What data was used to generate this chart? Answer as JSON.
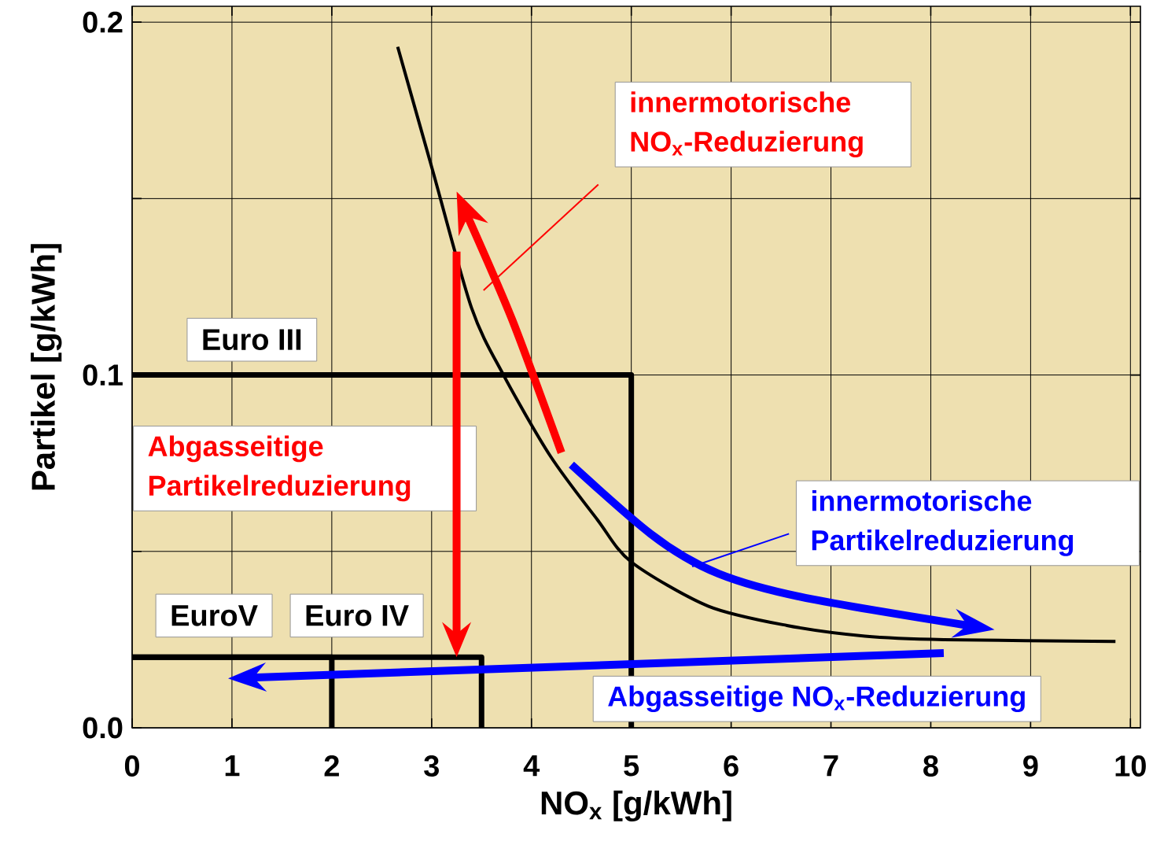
{
  "chart_data": {
    "type": "line",
    "xlabel": "NO$_{x}$ [g/kWh]",
    "ylabel": "Partikel [g/kWh]",
    "xlim": [
      0,
      10.1
    ],
    "ylim": [
      0,
      0.2045
    ],
    "xticks": [
      0,
      1,
      2,
      3,
      4,
      5,
      6,
      7,
      8,
      9,
      10
    ],
    "yticks": [
      {
        "value": 0,
        "label": "0.0"
      },
      {
        "value": 0.05,
        "label": null
      },
      0.1,
      {
        "value": 0.15,
        "label": null
      },
      0.2
    ],
    "grid": true,
    "series": [
      {
        "color": "#000000",
        "x": [
          2.66,
          3.01,
          3.4,
          3.72,
          4.19,
          4.66,
          5.0,
          5.77,
          6.56,
          7.34,
          8.13,
          9.85
        ],
        "values": [
          0.193,
          0.158,
          0.119,
          0.1,
          0.077,
          0.059,
          0.047,
          0.0345,
          0.029,
          0.026,
          0.025,
          0.0245
        ]
      },
      {
        "name": "Euro III",
        "color": "#000000",
        "x": [
          0,
          5,
          5
        ],
        "values": [
          0.1,
          0.1,
          0
        ]
      },
      {
        "name": "Euro IV",
        "color": "#000000",
        "x": [
          0,
          3.5,
          3.5
        ],
        "values": [
          0.02,
          0.02,
          0
        ]
      },
      {
        "name": "EuroV",
        "color": "#000000",
        "x": [
          0,
          2,
          2
        ],
        "values": [
          0.02,
          0.02,
          0
        ]
      }
    ],
    "annotations": [
      "innermotorische NO$_{x}$-Reduzierung",
      "Abgasseitige Partikelreduzierung",
      "innermotorische Partikelreduzierung",
      "Abgasseitige NO$_{x}$-Reduzierung"
    ]
  }
}
